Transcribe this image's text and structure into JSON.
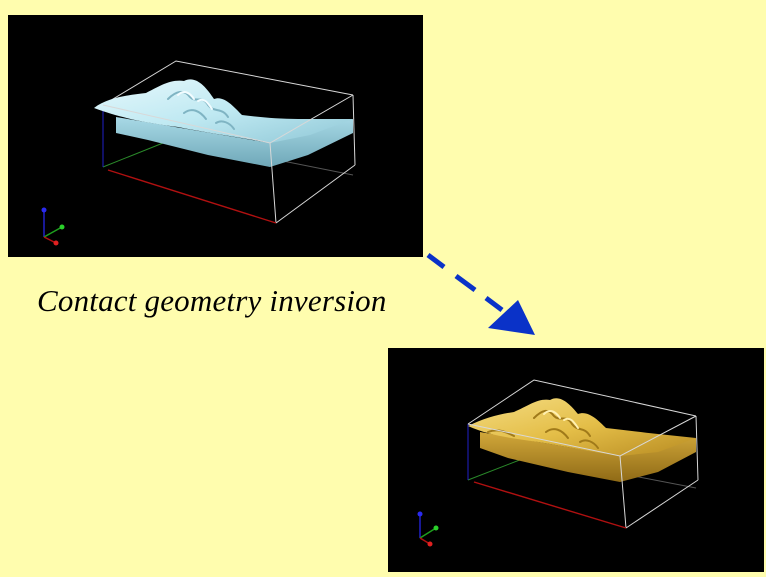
{
  "caption": "Contact geometry inversion",
  "colors": {
    "background": "#fffdae",
    "viewport_background": "#000000",
    "box_edges": "#d8d8d8",
    "axis_x": "#b01010",
    "axis_y": "#1ea01e",
    "axis_z": "#2020c8",
    "surface_before": "#bfe9f2",
    "surface_after": "#e8c24a",
    "arrow": "#0a32c8"
  },
  "panels": [
    {
      "name": "before",
      "surface_color": "surface-light-blue"
    },
    {
      "name": "after",
      "surface_color": "surface-golden-yellow"
    }
  ],
  "arrow": {
    "icon": "dashed-diagonal-arrow-icon",
    "direction": "down-right"
  }
}
